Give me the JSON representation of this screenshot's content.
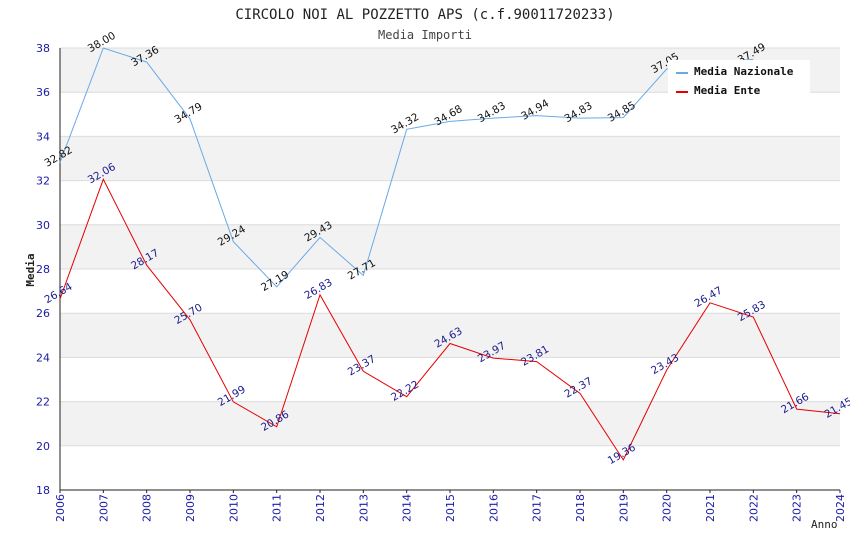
{
  "chart_data": {
    "type": "line",
    "title": "CIRCOLO NOI AL POZZETTO APS (c.f.90011720233)",
    "subtitle": "Media Importi",
    "xlabel": "Anno",
    "ylabel": "Media",
    "ylim": [
      18,
      38
    ],
    "yticks": [
      18,
      20,
      22,
      24,
      26,
      28,
      30,
      32,
      34,
      36,
      38
    ],
    "categories": [
      "2006",
      "2007",
      "2008",
      "2009",
      "2010",
      "2011",
      "2012",
      "2013",
      "2014",
      "2015",
      "2016",
      "2017",
      "2018",
      "2019",
      "2020",
      "2021",
      "2022",
      "2023",
      "2024"
    ],
    "series": [
      {
        "name": "Media Nazionale",
        "color": "#6aaae6",
        "values": [
          32.82,
          38.0,
          37.36,
          34.79,
          29.24,
          27.19,
          29.43,
          27.71,
          34.32,
          34.68,
          34.83,
          34.94,
          34.83,
          34.85,
          37.05,
          null,
          37.49,
          null,
          null
        ],
        "labels": [
          "32.82",
          "38.00",
          "37.36",
          "34.79",
          "29.24",
          "27.19",
          "29.43",
          "27.71",
          "34.32",
          "34.68",
          "34.83",
          "34.94",
          "34.83",
          "34.85",
          "37.05",
          "",
          "37.49",
          "",
          ""
        ]
      },
      {
        "name": "Media Ente",
        "color": "#e60000",
        "values": [
          26.64,
          32.06,
          28.17,
          25.7,
          21.99,
          20.86,
          26.83,
          23.37,
          22.22,
          24.63,
          23.97,
          23.81,
          22.37,
          19.36,
          23.43,
          26.47,
          25.83,
          21.66,
          21.45
        ],
        "labels": [
          "26.64",
          "32.06",
          "28.17",
          "25.70",
          "21.99",
          "20.86",
          "26.83",
          "23.37",
          "22.22",
          "24.63",
          "23.97",
          "23.81",
          "22.37",
          "19.36",
          "23.43",
          "26.47",
          "25.83",
          "21.66",
          "21.45"
        ]
      }
    ],
    "legend": {
      "position": "top-right"
    }
  }
}
